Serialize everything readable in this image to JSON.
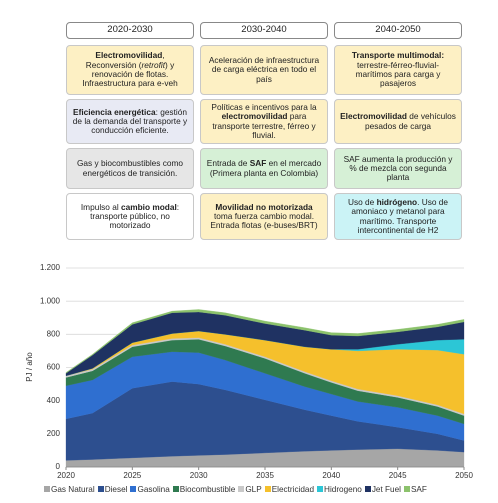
{
  "table": {
    "headers": [
      "2020-2030",
      "2030-2040",
      "2040-2050"
    ],
    "rows": [
      [
        {
          "runs": [
            {
              "text": "Electromovilidad",
              "style": "bold"
            },
            {
              "text": ", Reconversión ("
            },
            {
              "text": "retrofit",
              "style": "italic"
            },
            {
              "text": ") y renovación de flotas. Infraestructura para e-veh"
            }
          ]
        },
        {
          "runs": [
            {
              "text": "Aceleración de infraestructura de carga eléctrica en todo el país"
            }
          ]
        },
        {
          "runs": [
            {
              "text": "Transporte multimodal:",
              "style": "bold"
            },
            {
              "text": " terrestre-férreo-fluvial-marítimos para carga y pasajeros"
            }
          ]
        }
      ],
      [
        {
          "runs": [
            {
              "text": "Eficiencia energética",
              "style": "bold"
            },
            {
              "text": ": gestión de la demanda del transporte y conducción eficiente."
            }
          ]
        },
        {
          "runs": [
            {
              "text": "Políticas e incentivos para la "
            },
            {
              "text": "electromovilidad",
              "style": "bold"
            },
            {
              "text": " para transporte terrestre, férreo y fluvial."
            }
          ]
        },
        {
          "runs": [
            {
              "text": "Electromovilidad",
              "style": "bold"
            },
            {
              "text": " de vehículos pesados de carga"
            }
          ]
        }
      ],
      [
        {
          "runs": [
            {
              "text": "Gas y biocombustibles como energéticos de transición."
            }
          ]
        },
        {
          "runs": [
            {
              "text": "Entrada de "
            },
            {
              "text": "SAF",
              "style": "bold"
            },
            {
              "text": " en el mercado (Primera planta en Colombia)"
            }
          ]
        },
        {
          "runs": [
            {
              "text": "SAF aumenta la producción y % de mezcla con segunda planta"
            }
          ]
        }
      ],
      [
        {
          "runs": [
            {
              "text": "Impulso al "
            },
            {
              "text": "cambio modal",
              "style": "bold"
            },
            {
              "text": ": transporte público, no motorizado"
            }
          ]
        },
        {
          "runs": [
            {
              "text": "Movilidad no motorizada",
              "style": "bold"
            },
            {
              "text": " toma fuerza cambio modal. Entrada flotas (e-buses/BRT)"
            }
          ]
        },
        {
          "runs": [
            {
              "text": "Uso de "
            },
            {
              "text": "hidrógeno",
              "style": "bold"
            },
            {
              "text": ". Uso de amoniaco y metanol para marítimo. Transporte intercontinental de H2"
            }
          ]
        }
      ]
    ]
  },
  "chart_data": {
    "type": "stacked_area",
    "y_label": "PJ / año",
    "x": [
      2020,
      2022,
      2025,
      2028,
      2030,
      2032,
      2035,
      2038,
      2040,
      2042,
      2045,
      2048,
      2050
    ],
    "xlim": [
      2020,
      2050
    ],
    "xticks": [
      2020,
      2025,
      2030,
      2035,
      2040,
      2045,
      2050
    ],
    "ylim": [
      0,
      1200
    ],
    "yticks": [
      0,
      200,
      400,
      600,
      800,
      {
        "value": 1000,
        "label": "1.000"
      },
      {
        "value": 1200,
        "label": "1.200"
      }
    ],
    "grid": true,
    "series": [
      {
        "name": "Gas Natural",
        "color": "#a6a6a6",
        "values": [
          40,
          45,
          55,
          65,
          70,
          75,
          85,
          95,
          100,
          105,
          110,
          100,
          90
        ]
      },
      {
        "name": "Diesel",
        "color": "#2d4f8f",
        "values": [
          250,
          280,
          420,
          450,
          430,
          390,
          320,
          250,
          210,
          170,
          130,
          100,
          70
        ]
      },
      {
        "name": "Gasolina",
        "color": "#2f6fd0",
        "values": [
          200,
          200,
          190,
          180,
          190,
          180,
          160,
          140,
          130,
          120,
          120,
          110,
          100
        ]
      },
      {
        "name": "Biocombustible",
        "color": "#2f7a50",
        "values": [
          50,
          55,
          60,
          70,
          80,
          85,
          90,
          80,
          70,
          65,
          60,
          55,
          50
        ]
      },
      {
        "name": "GLP",
        "color": "#c9c9c9",
        "values": [
          10,
          10,
          10,
          10,
          10,
          10,
          10,
          10,
          10,
          10,
          10,
          10,
          10
        ]
      },
      {
        "name": "Electricidad",
        "color": "#f5c02c",
        "values": [
          0,
          5,
          15,
          30,
          40,
          60,
          100,
          150,
          190,
          230,
          280,
          330,
          360
        ]
      },
      {
        "name": "Hidrogeno",
        "color": "#2cc6d6",
        "values": [
          0,
          0,
          0,
          0,
          0,
          0,
          0,
          0,
          0,
          10,
          30,
          60,
          90
        ]
      },
      {
        "name": "Jet Fuel",
        "color": "#1f3262",
        "values": [
          15,
          80,
          110,
          125,
          115,
          115,
          100,
          100,
          85,
          80,
          75,
          80,
          105
        ]
      },
      {
        "name": "SAF",
        "color": "#8cc26c",
        "values": [
          5,
          5,
          10,
          10,
          15,
          15,
          15,
          15,
          15,
          15,
          15,
          15,
          15
        ]
      }
    ]
  }
}
